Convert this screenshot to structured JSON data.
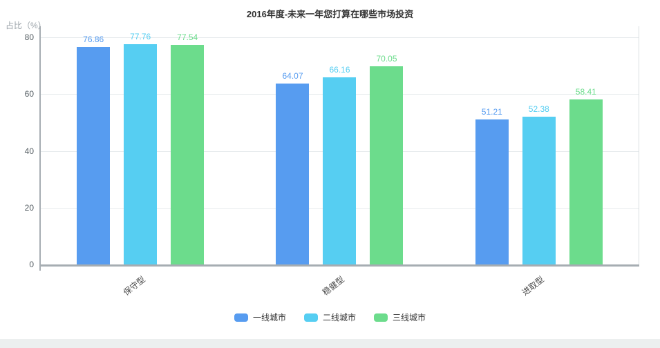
{
  "title": "2016年度-未来一年您打算在哪些市场投资",
  "chart_data": {
    "type": "bar",
    "title": "2016年度-未来一年您打算在哪些市场投资",
    "ylabel": "占比（%）",
    "xlabel": "",
    "categories": [
      "保守型",
      "稳健型",
      "进取型"
    ],
    "series": [
      {
        "name": "一线城市",
        "color": "#579CF0",
        "values": [
          76.86,
          64.07,
          51.21
        ]
      },
      {
        "name": "二线城市",
        "color": "#56CEF2",
        "values": [
          77.76,
          66.16,
          52.38
        ]
      },
      {
        "name": "三线城市",
        "color": "#6CDC8C",
        "values": [
          77.54,
          70.05,
          58.41
        ]
      }
    ],
    "ylim": [
      0,
      80
    ],
    "yticks": [
      0,
      20,
      40,
      60,
      80
    ],
    "grid": true,
    "legend_position": "bottom",
    "value_labels": true
  }
}
